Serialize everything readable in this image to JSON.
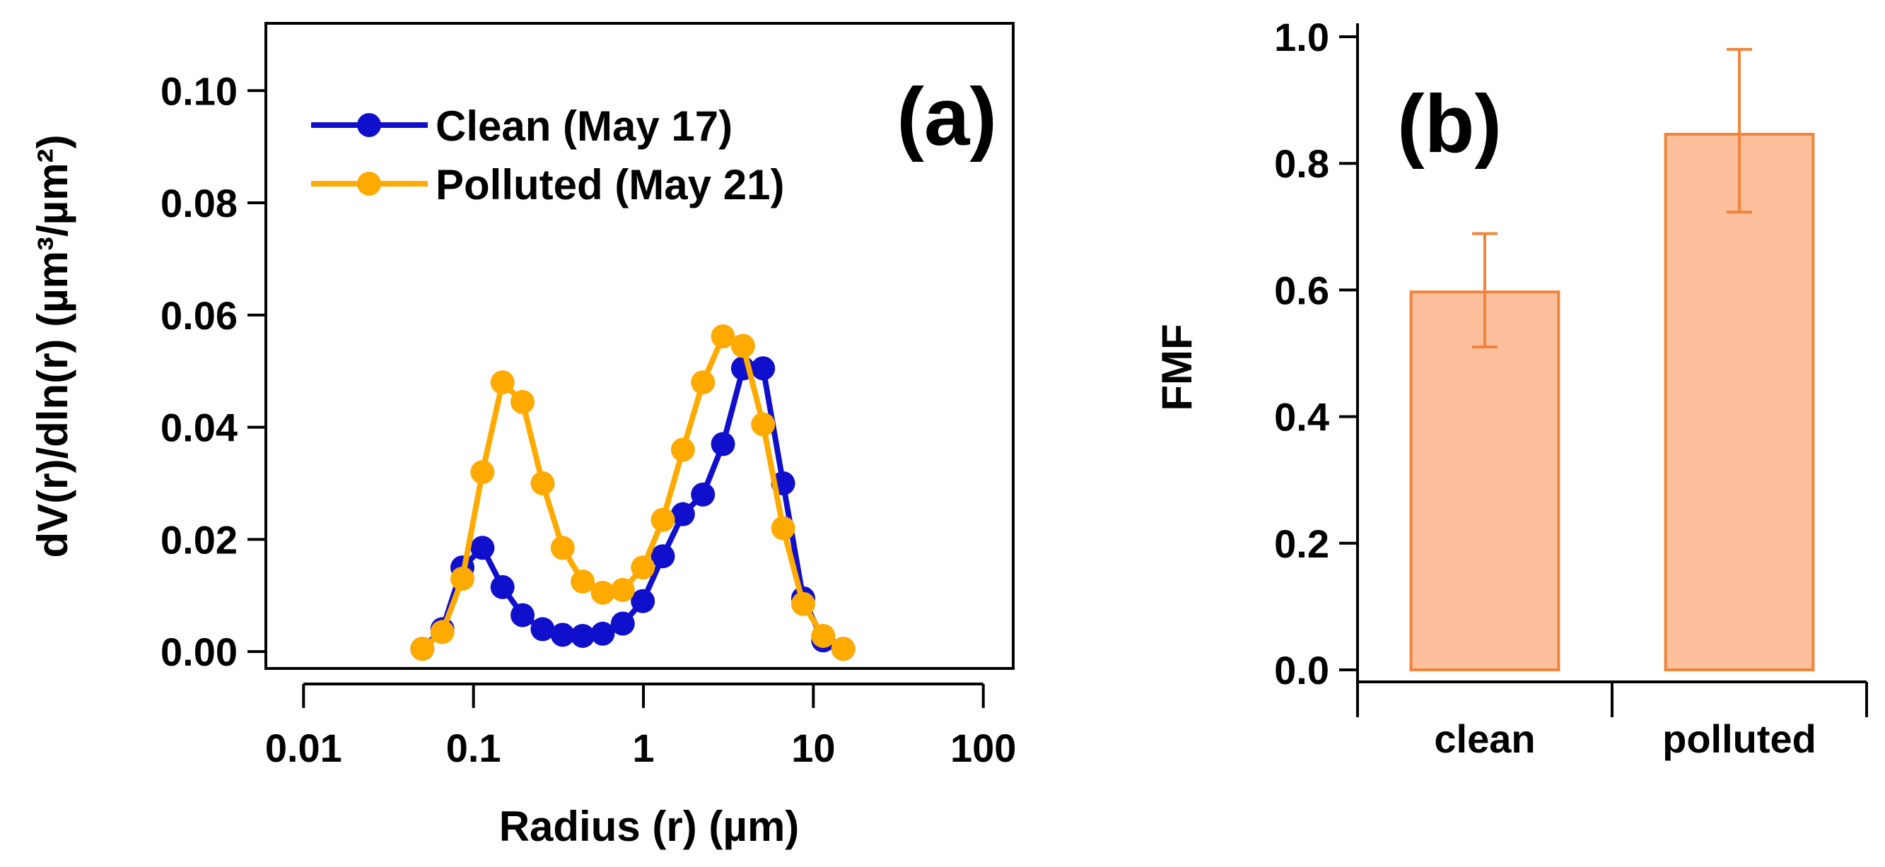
{
  "chart_data": [
    {
      "type": "line",
      "panel_label": "(a)",
      "xlabel": "Radius (r) (µm)",
      "ylabel": "dV(r)/dln(r) (µm³/µm²)",
      "x_scale": "log",
      "xlim": [
        0.006,
        150
      ],
      "ylim": [
        -0.003,
        0.112
      ],
      "x_ticks": [
        0.01,
        0.1,
        1,
        10,
        100
      ],
      "x_tick_labels": [
        "0.01",
        "0.1",
        "1",
        "10",
        "100"
      ],
      "y_ticks": [
        0.0,
        0.02,
        0.04,
        0.06,
        0.08,
        0.1
      ],
      "y_tick_labels": [
        "0.00",
        "0.02",
        "0.04",
        "0.06",
        "0.08",
        "0.10"
      ],
      "legend_position": "top-left",
      "x": [
        0.05,
        0.065604,
        0.086077,
        0.112939,
        0.148183,
        0.194427,
        0.255102,
        0.334712,
        0.43917,
        0.576217,
        0.756034,
        0.991964,
        1.301517,
        1.707668,
        2.240568,
        2.939763,
        3.857148,
        5.060819,
        6.640123,
        8.712266,
        11.43106,
        15.0
      ],
      "series": [
        {
          "name": "Clean (May 17)",
          "color": "#1010cc",
          "values": [
            0.0005,
            0.004,
            0.015,
            0.0185,
            0.0115,
            0.0065,
            0.004,
            0.003,
            0.0028,
            0.0032,
            0.005,
            0.009,
            0.017,
            0.0245,
            0.028,
            0.037,
            0.0505,
            0.0505,
            0.03,
            0.0095,
            0.002,
            0.0005
          ]
        },
        {
          "name": "Polluted (May 21)",
          "color": "#ffaa00",
          "values": [
            0.0005,
            0.0035,
            0.013,
            0.032,
            0.048,
            0.0445,
            0.03,
            0.0185,
            0.0125,
            0.0105,
            0.011,
            0.015,
            0.0235,
            0.036,
            0.048,
            0.0562,
            0.0545,
            0.0405,
            0.022,
            0.0085,
            0.0028,
            0.0005
          ]
        }
      ]
    },
    {
      "type": "bar",
      "panel_label": "(b)",
      "ylabel": "FMF",
      "xlabel": "",
      "ylim": [
        0,
        1.0
      ],
      "y_ticks": [
        0.0,
        0.2,
        0.4,
        0.6,
        0.8,
        1.0
      ],
      "y_tick_labels": [
        "0.0",
        "0.2",
        "0.4",
        "0.6",
        "0.8",
        "1.0"
      ],
      "categories": [
        "clean",
        "polluted"
      ],
      "values": [
        0.597,
        0.846
      ],
      "error_low": [
        0.51,
        0.723
      ],
      "error_high": [
        0.689,
        0.98
      ],
      "bar_fill": "#fbbf9c",
      "bar_stroke": "#f0843c"
    }
  ]
}
